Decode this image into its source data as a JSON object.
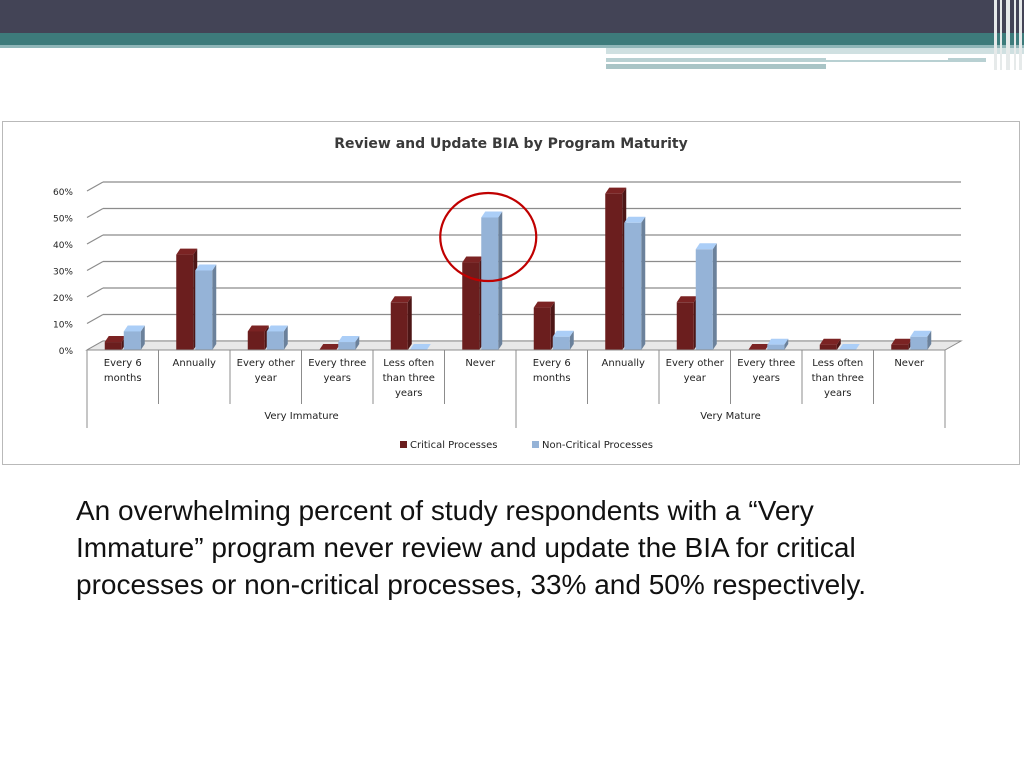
{
  "slide": {
    "caption": "An overwhelming percent of study respondents with a “Very Immature” program never review and update the BIA for critical processes or non-critical processes, 33% and 50% respectively."
  },
  "colors": {
    "header_dark": "#434456",
    "header_teal": "#3d7b7b",
    "critical": "#6b1e1e",
    "noncritical": "#95b3d7",
    "highlight_circle": "#c00000"
  },
  "chart_data": {
    "type": "bar",
    "title": "Review and Update BIA by Program Maturity",
    "ylim": [
      0,
      60
    ],
    "y_ticks": [
      "0%",
      "10%",
      "20%",
      "30%",
      "40%",
      "50%",
      "60%"
    ],
    "grid": true,
    "legend_position": "bottom",
    "groups": [
      {
        "name": "Very Immature",
        "categories": [
          [
            "Every 6",
            "months"
          ],
          [
            "Annually"
          ],
          [
            "Every other",
            "year"
          ],
          [
            "Every three",
            "years"
          ],
          [
            "Less often",
            "than three",
            "years"
          ],
          [
            "Never"
          ]
        ]
      },
      {
        "name": "Very Mature",
        "categories": [
          [
            "Every 6",
            "months"
          ],
          [
            "Annually"
          ],
          [
            "Every other",
            "year"
          ],
          [
            "Every three",
            "years"
          ],
          [
            "Less often",
            "than three",
            "years"
          ],
          [
            "Never"
          ]
        ]
      }
    ],
    "series": [
      {
        "name": "Critical Processes",
        "values": [
          3,
          36,
          7,
          0,
          18,
          33,
          16,
          59,
          18,
          0,
          2,
          2
        ]
      },
      {
        "name": "Non-Critical Processes",
        "values": [
          7,
          30,
          7,
          3,
          0,
          50,
          5,
          48,
          38,
          2,
          0,
          5
        ]
      }
    ],
    "annotation": {
      "type": "circle",
      "target_group": "Very Immature",
      "target_category": "Never"
    }
  }
}
